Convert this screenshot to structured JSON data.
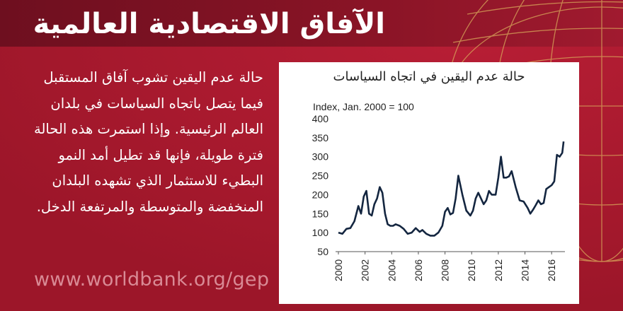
{
  "header": {
    "title": "الآفاق الاقتصادية العالمية"
  },
  "body_text": "حالة عدم اليقين تشوب آفاق المستقبل فيما يتصل باتجاه السياسات في بلدان العالم الرئيسية. وإذا استمرت هذه الحالة فترة طويلة، فإنها قد تطيل أمد النمو البطيء للاستثمار الذي تشهده البلدان المنخفضة والمتوسطة والمرتفعة الدخل.",
  "footer": {
    "url": "www.worldbank.org/gep"
  },
  "colors": {
    "background": "#a6192e",
    "header": "#7d1223",
    "line": "#142640",
    "globe_lines": "#d8a85a"
  },
  "icons": {
    "globe": "globe-grid-icon"
  },
  "chart_data": {
    "type": "line",
    "title": "حالة عدم اليقين في اتجاه السياسات",
    "ylabel": "Index, Jan. 2000 = 100",
    "ylim": [
      50,
      400
    ],
    "yticks": [
      50,
      100,
      150,
      200,
      250,
      300,
      350,
      400
    ],
    "xlim": [
      2000,
      2017
    ],
    "xticks": [
      "2000",
      "2002",
      "2004",
      "2006",
      "2008",
      "2010",
      "2012",
      "2014",
      "2016"
    ],
    "grid": false,
    "series": [
      {
        "name": "",
        "x": [
          2000.0,
          2000.3,
          2000.6,
          2000.9,
          2001.2,
          2001.5,
          2001.7,
          2001.9,
          2002.1,
          2002.3,
          2002.5,
          2002.7,
          2002.9,
          2003.1,
          2003.3,
          2003.5,
          2003.7,
          2003.9,
          2004.1,
          2004.3,
          2004.6,
          2004.9,
          2005.2,
          2005.5,
          2005.8,
          2006.1,
          2006.3,
          2006.6,
          2006.9,
          2007.2,
          2007.5,
          2007.8,
          2008.0,
          2008.2,
          2008.4,
          2008.6,
          2008.8,
          2009.0,
          2009.3,
          2009.6,
          2009.9,
          2010.1,
          2010.3,
          2010.5,
          2010.7,
          2010.9,
          2011.1,
          2011.3,
          2011.5,
          2011.8,
          2012.0,
          2012.2,
          2012.4,
          2012.6,
          2012.8,
          2013.0,
          2013.3,
          2013.6,
          2013.9,
          2014.2,
          2014.4,
          2014.6,
          2014.8,
          2015.0,
          2015.2,
          2015.4,
          2015.6,
          2015.8,
          2016.0,
          2016.2,
          2016.4,
          2016.6,
          2016.8,
          2016.9
        ],
        "values": [
          100,
          97,
          110,
          112,
          130,
          170,
          150,
          195,
          210,
          150,
          145,
          175,
          190,
          220,
          205,
          150,
          122,
          118,
          118,
          122,
          118,
          110,
          97,
          100,
          112,
          102,
          107,
          97,
          92,
          92,
          100,
          118,
          155,
          165,
          148,
          152,
          190,
          250,
          200,
          158,
          145,
          158,
          190,
          205,
          190,
          175,
          185,
          210,
          200,
          200,
          245,
          300,
          245,
          245,
          248,
          262,
          220,
          185,
          182,
          165,
          150,
          160,
          172,
          185,
          175,
          178,
          215,
          220,
          225,
          235,
          305,
          300,
          310,
          340
        ]
      }
    ]
  }
}
